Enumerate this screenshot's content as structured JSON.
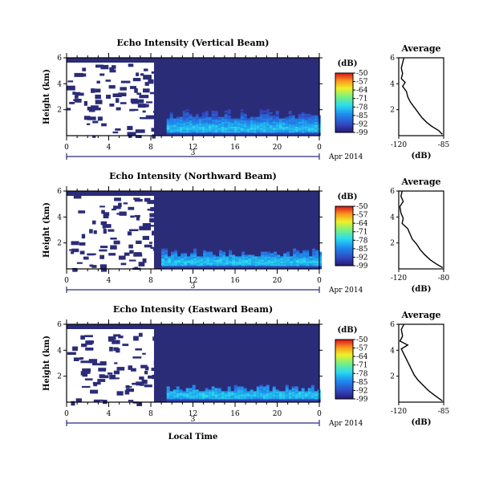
{
  "chart_data": [
    {
      "type": "heatmap",
      "title": "Echo Intensity (Vertical Beam)",
      "ylabel": "Height (km)",
      "x_ticks": [
        "0",
        "4",
        "8",
        "12",
        "16",
        "20",
        "0"
      ],
      "y_ticks": [
        "6",
        "4",
        "2"
      ],
      "xlim": [
        0,
        24
      ],
      "ylim": [
        0,
        6
      ],
      "date_number": "3",
      "date_label": "Apr 2014",
      "colorbar": {
        "unit": "(dB)",
        "ticks": [
          "-50",
          "-57",
          "-64",
          "-71",
          "-78",
          "-85",
          "-92",
          "-99"
        ],
        "range": [
          -99,
          -50
        ]
      },
      "regions": {
        "white_left": {
          "x": [
            0,
            8.3
          ],
          "y": [
            0,
            6
          ]
        },
        "echo_layer": {
          "x": [
            9.5,
            24
          ],
          "top_km": 2.0,
          "peak_km": 0.5
        }
      },
      "profile": {
        "title": "Average",
        "xlabel": "(dB)",
        "x_ticks": [
          "-120",
          "-85"
        ],
        "y_ticks": [
          "6",
          "4",
          "2"
        ],
        "xlim": [
          -120,
          -85
        ],
        "ylim": [
          0,
          6
        ],
        "points": [
          [
            -116,
            6.0
          ],
          [
            -117,
            5.6
          ],
          [
            -118,
            5.2
          ],
          [
            -117,
            4.8
          ],
          [
            -118,
            4.4
          ],
          [
            -115,
            4.1
          ],
          [
            -117,
            3.8
          ],
          [
            -114,
            3.4
          ],
          [
            -113,
            3.0
          ],
          [
            -111,
            2.6
          ],
          [
            -108,
            2.2
          ],
          [
            -105,
            1.8
          ],
          [
            -102,
            1.4
          ],
          [
            -98,
            1.0
          ],
          [
            -94,
            0.7
          ],
          [
            -89,
            0.4
          ],
          [
            -86,
            0.1
          ]
        ]
      }
    },
    {
      "type": "heatmap",
      "title": "Echo Intensity (Northward Beam)",
      "ylabel": "Height (km)",
      "x_ticks": [
        "0",
        "4",
        "8",
        "12",
        "16",
        "20",
        "0"
      ],
      "y_ticks": [
        "6",
        "4",
        "2"
      ],
      "xlim": [
        0,
        24
      ],
      "ylim": [
        0,
        6
      ],
      "date_number": "3",
      "date_label": "Apr 2014",
      "colorbar": {
        "unit": "(dB)",
        "ticks": [
          "-50",
          "-57",
          "-64",
          "-71",
          "-78",
          "-85",
          "-92",
          "-99"
        ],
        "range": [
          -99,
          -50
        ]
      },
      "regions": {
        "white_left": {
          "x": [
            0,
            8.3
          ],
          "y": [
            0,
            6
          ]
        },
        "echo_layer": {
          "x": [
            9.0,
            24
          ],
          "top_km": 1.4,
          "peak_km": 0.5
        }
      },
      "profile": {
        "title": "Average",
        "xlabel": "(dB)",
        "x_ticks": [
          "-120",
          "-80"
        ],
        "y_ticks": [
          "6",
          "4",
          "2"
        ],
        "xlim": [
          -120,
          -80
        ],
        "ylim": [
          0,
          6
        ],
        "points": [
          [
            -117,
            6.0
          ],
          [
            -118,
            5.6
          ],
          [
            -116,
            5.2
          ],
          [
            -119,
            4.8
          ],
          [
            -118,
            4.3
          ],
          [
            -116,
            3.9
          ],
          [
            -117,
            3.5
          ],
          [
            -112,
            3.1
          ],
          [
            -110,
            2.7
          ],
          [
            -108,
            2.3
          ],
          [
            -104,
            1.9
          ],
          [
            -101,
            1.5
          ],
          [
            -97,
            1.1
          ],
          [
            -92,
            0.7
          ],
          [
            -86,
            0.35
          ],
          [
            -81,
            0.1
          ]
        ]
      }
    },
    {
      "type": "heatmap",
      "title": "Echo Intensity (Eastward Beam)",
      "ylabel": "Height (km)",
      "x_ticks": [
        "0",
        "4",
        "8",
        "12",
        "16",
        "20",
        "0"
      ],
      "y_ticks": [
        "6",
        "4",
        "2"
      ],
      "xlim": [
        0,
        24
      ],
      "ylim": [
        0,
        6
      ],
      "date_number": "3",
      "date_label": "Apr 2014",
      "xlabel": "Local Time",
      "colorbar": {
        "unit": "(dB)",
        "ticks": [
          "-50",
          "-57",
          "-64",
          "-71",
          "-78",
          "-85",
          "-92",
          "-99"
        ],
        "range": [
          -99,
          -50
        ]
      },
      "regions": {
        "white_left": {
          "x": [
            0,
            8.3
          ],
          "y": [
            0,
            6
          ]
        },
        "echo_layer": {
          "x": [
            9.5,
            24
          ],
          "top_km": 1.2,
          "peak_km": 0.5
        }
      },
      "profile": {
        "title": "Average",
        "xlabel": "(dB)",
        "x_ticks": [
          "-120",
          "-85"
        ],
        "y_ticks": [
          "6",
          "4",
          "2"
        ],
        "xlim": [
          -120,
          -85
        ],
        "ylim": [
          0,
          6
        ],
        "points": [
          [
            -116,
            6.0
          ],
          [
            -118,
            5.6
          ],
          [
            -117,
            5.1
          ],
          [
            -119,
            4.7
          ],
          [
            -113,
            4.4
          ],
          [
            -118,
            4.1
          ],
          [
            -116,
            3.7
          ],
          [
            -114,
            3.3
          ],
          [
            -112,
            2.9
          ],
          [
            -110,
            2.5
          ],
          [
            -108,
            2.1
          ],
          [
            -105,
            1.7
          ],
          [
            -101,
            1.3
          ],
          [
            -97,
            0.9
          ],
          [
            -93,
            0.6
          ],
          [
            -89,
            0.3
          ],
          [
            -86,
            0.1
          ]
        ]
      }
    }
  ]
}
